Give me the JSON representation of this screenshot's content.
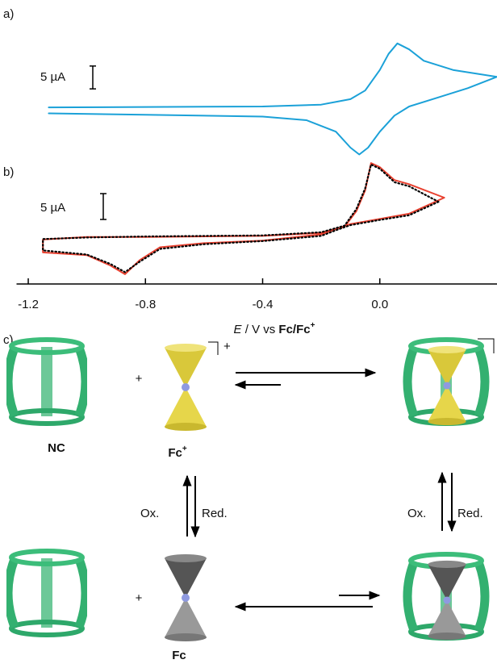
{
  "chart_data": [
    {
      "type": "line",
      "label": "a)",
      "xlim": [
        -1.24,
        0.4
      ],
      "ylim": [
        -11,
        19
      ],
      "scale_bar": {
        "value": 5,
        "label": "5 µA"
      },
      "series": [
        {
          "color": "#1ba1d8",
          "style": "solid",
          "x": [
            -1.13,
            -0.8,
            -0.4,
            -0.2,
            -0.1,
            -0.05,
            0.0,
            0.03,
            0.06,
            0.1,
            0.15,
            0.25,
            0.4,
            0.3,
            0.2,
            0.1,
            0.05,
            0.0,
            -0.04,
            -0.07,
            -0.1,
            -0.15,
            -0.25,
            -0.4,
            -0.8,
            -1.13
          ],
          "values": [
            0.8,
            0.9,
            1.0,
            1.4,
            2.6,
            4.5,
            9,
            12.5,
            14.8,
            13.5,
            11,
            9,
            7.5,
            5,
            3,
            1,
            -1,
            -4.5,
            -8,
            -9.5,
            -8,
            -4.5,
            -2,
            -1.2,
            -0.8,
            -0.5
          ]
        }
      ]
    },
    {
      "type": "line",
      "label": "b)",
      "xlim": [
        -1.24,
        0.4
      ],
      "ylim": [
        -7,
        16.4
      ],
      "xticks": [
        -1.2,
        -0.8,
        -0.4,
        {
          "value": 0,
          "label": "0.0"
        }
      ],
      "xlabel": [
        "E",
        " / V vs ",
        "Fc",
        "/",
        "Fc",
        "+"
      ],
      "scale_bar": {
        "value": 5,
        "label": "5 µA"
      },
      "series": [
        {
          "color": "#e8402f",
          "style": "solid",
          "x": [
            0.22,
            0.1,
            0.0,
            -0.1,
            -0.15,
            -0.2,
            -0.4,
            -0.6,
            -0.75,
            -0.82,
            -0.87,
            -0.92,
            -1.0,
            -1.15,
            -1.15,
            -1.0,
            -0.8,
            -0.4,
            -0.2,
            -0.12,
            -0.08,
            -0.05,
            -0.03,
            0.0,
            0.05,
            0.1,
            0.22
          ],
          "values": [
            8.6,
            5.5,
            4.5,
            3.5,
            2.5,
            1.5,
            0.3,
            -0.2,
            -1.0,
            -3.5,
            -6.2,
            -4.5,
            -2.5,
            -2.0,
            0.5,
            1.0,
            1.0,
            1.2,
            1.8,
            3.0,
            6.0,
            10.0,
            15.3,
            14.5,
            12.0,
            11.2,
            8.6
          ]
        },
        {
          "color": "#000000",
          "style": "dotted",
          "x": [
            0.2,
            0.1,
            0.0,
            -0.1,
            -0.15,
            -0.2,
            -0.4,
            -0.6,
            -0.75,
            -0.82,
            -0.87,
            -0.92,
            -1.0,
            -1.15,
            -1.15,
            -1.0,
            -0.8,
            -0.4,
            -0.2,
            -0.12,
            -0.08,
            -0.05,
            -0.03,
            0.0,
            0.05,
            0.1,
            0.2
          ],
          "values": [
            7.8,
            5.2,
            4.3,
            3.3,
            2.3,
            1.2,
            0.2,
            -0.4,
            -1.3,
            -3.8,
            -5.8,
            -4.2,
            -2.4,
            -1.6,
            0.6,
            0.9,
            1.1,
            1.3,
            1.9,
            3.2,
            6.4,
            10.4,
            15.0,
            14.2,
            11.6,
            10.8,
            7.8
          ]
        }
      ]
    }
  ],
  "scheme": {
    "label": "c)",
    "host": "NC",
    "guest_ox": "Fc",
    "guest_ox_charge": "+",
    "guest": "Fc",
    "plus": "+",
    "ox": "Ox.",
    "red": "Red."
  }
}
